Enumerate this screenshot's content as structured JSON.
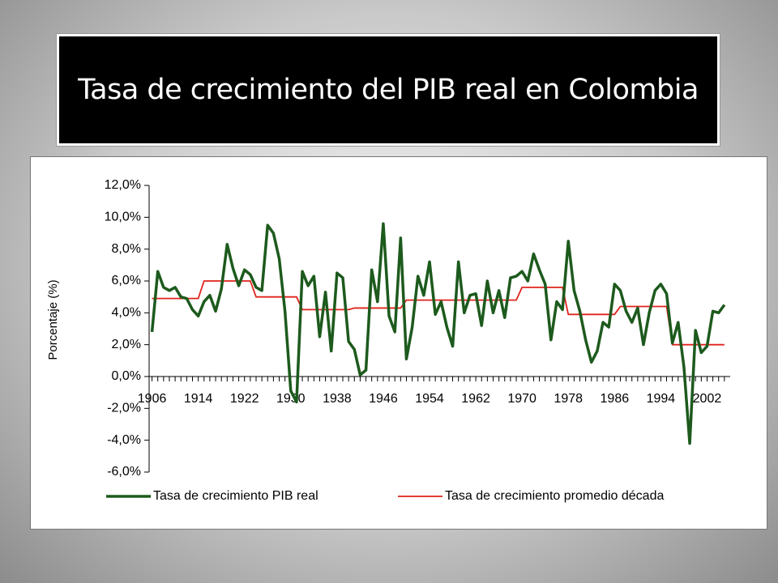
{
  "chart_data": {
    "type": "line",
    "title": "Tasa de crecimiento del PIB real en Colombia",
    "ylabel": "Porcentaje (%)",
    "x": [
      1906,
      1907,
      1908,
      1909,
      1910,
      1911,
      1912,
      1913,
      1914,
      1915,
      1916,
      1917,
      1918,
      1919,
      1920,
      1921,
      1922,
      1923,
      1924,
      1925,
      1926,
      1927,
      1928,
      1929,
      1930,
      1931,
      1932,
      1933,
      1934,
      1935,
      1936,
      1937,
      1938,
      1939,
      1940,
      1941,
      1942,
      1943,
      1944,
      1945,
      1946,
      1947,
      1948,
      1949,
      1950,
      1951,
      1952,
      1953,
      1954,
      1955,
      1956,
      1957,
      1958,
      1959,
      1960,
      1961,
      1962,
      1963,
      1964,
      1965,
      1966,
      1967,
      1968,
      1969,
      1970,
      1971,
      1972,
      1973,
      1974,
      1975,
      1976,
      1977,
      1978,
      1979,
      1980,
      1981,
      1982,
      1983,
      1984,
      1985,
      1986,
      1987,
      1988,
      1989,
      1990,
      1991,
      1992,
      1993,
      1994,
      1995,
      1996,
      1997,
      1998,
      1999,
      2000,
      2001,
      2002,
      2003,
      2004,
      2005
    ],
    "series": [
      {
        "name": "Tasa de crecimiento PIB real",
        "color": "#1d5a1d",
        "values": [
          2.8,
          6.6,
          5.6,
          5.4,
          5.6,
          5.0,
          4.9,
          4.2,
          3.8,
          4.7,
          5.1,
          4.1,
          5.5,
          8.3,
          6.8,
          5.7,
          6.7,
          6.4,
          5.6,
          5.4,
          9.5,
          9.0,
          7.4,
          4.1,
          -0.9,
          -1.6,
          6.6,
          5.7,
          6.3,
          2.5,
          5.3,
          1.6,
          6.5,
          6.2,
          2.2,
          1.7,
          0.1,
          0.4,
          6.7,
          4.7,
          9.6,
          3.8,
          2.8,
          8.7,
          1.1,
          3.1,
          6.3,
          5.1,
          7.2,
          3.9,
          4.7,
          3.1,
          1.9,
          7.2,
          4.0,
          5.1,
          5.2,
          3.2,
          6.0,
          4.0,
          5.4,
          3.7,
          6.2,
          6.3,
          6.6,
          6.0,
          7.7,
          6.7,
          5.8,
          2.3,
          4.7,
          4.2,
          8.5,
          5.4,
          4.1,
          2.3,
          0.9,
          1.6,
          3.4,
          3.1,
          5.8,
          5.4,
          4.1,
          3.4,
          4.3,
          2.0,
          4.0,
          5.4,
          5.8,
          5.2,
          2.1,
          3.4,
          0.6,
          -4.2,
          2.9,
          1.5,
          1.9,
          4.1,
          4.0,
          4.5
        ]
      },
      {
        "name": "Tasa de crecimiento promedio década",
        "color": "#e0231c",
        "values": [
          4.9,
          4.9,
          4.9,
          4.9,
          4.9,
          4.9,
          4.9,
          4.9,
          4.9,
          6.0,
          6.0,
          6.0,
          6.0,
          6.0,
          6.0,
          6.0,
          6.0,
          6.0,
          5.0,
          5.0,
          5.0,
          5.0,
          5.0,
          5.0,
          5.0,
          5.0,
          4.2,
          4.2,
          4.2,
          4.2,
          4.2,
          4.2,
          4.2,
          4.2,
          4.2,
          4.3,
          4.3,
          4.3,
          4.3,
          4.3,
          4.3,
          4.3,
          4.3,
          4.3,
          4.8,
          4.8,
          4.8,
          4.8,
          4.8,
          4.8,
          4.8,
          4.8,
          4.8,
          4.8,
          4.8,
          4.8,
          4.8,
          4.8,
          4.8,
          4.8,
          4.8,
          4.8,
          4.8,
          4.8,
          5.6,
          5.6,
          5.6,
          5.6,
          5.6,
          5.6,
          5.6,
          5.6,
          3.9,
          3.9,
          3.9,
          3.9,
          3.9,
          3.9,
          3.9,
          3.9,
          3.9,
          4.4,
          4.4,
          4.4,
          4.4,
          4.4,
          4.4,
          4.4,
          4.4,
          4.4,
          2.0,
          2.0,
          2.0,
          2.0,
          2.0,
          2.0,
          2.0,
          2.0,
          2.0,
          2.0
        ]
      }
    ],
    "xlim": [
      1905.5,
      2006
    ],
    "xticks": [
      1906,
      1914,
      1922,
      1930,
      1938,
      1946,
      1954,
      1962,
      1970,
      1978,
      1986,
      1994,
      2002
    ],
    "ylim": [
      -6,
      12
    ],
    "yticks": [
      {
        "value": -6,
        "label": "-6,0%"
      },
      {
        "value": -4,
        "label": "-4,0%"
      },
      {
        "value": -2,
        "label": "-2,0%"
      },
      {
        "value": 0,
        "label": "0,0%"
      },
      {
        "value": 2,
        "label": "2,0%"
      },
      {
        "value": 4,
        "label": "4,0%"
      },
      {
        "value": 6,
        "label": "6,0%"
      },
      {
        "value": 8,
        "label": "8,0%"
      },
      {
        "value": 10,
        "label": "10,0%"
      },
      {
        "value": 12,
        "label": "12,0%"
      }
    ],
    "legend": "bottom"
  }
}
